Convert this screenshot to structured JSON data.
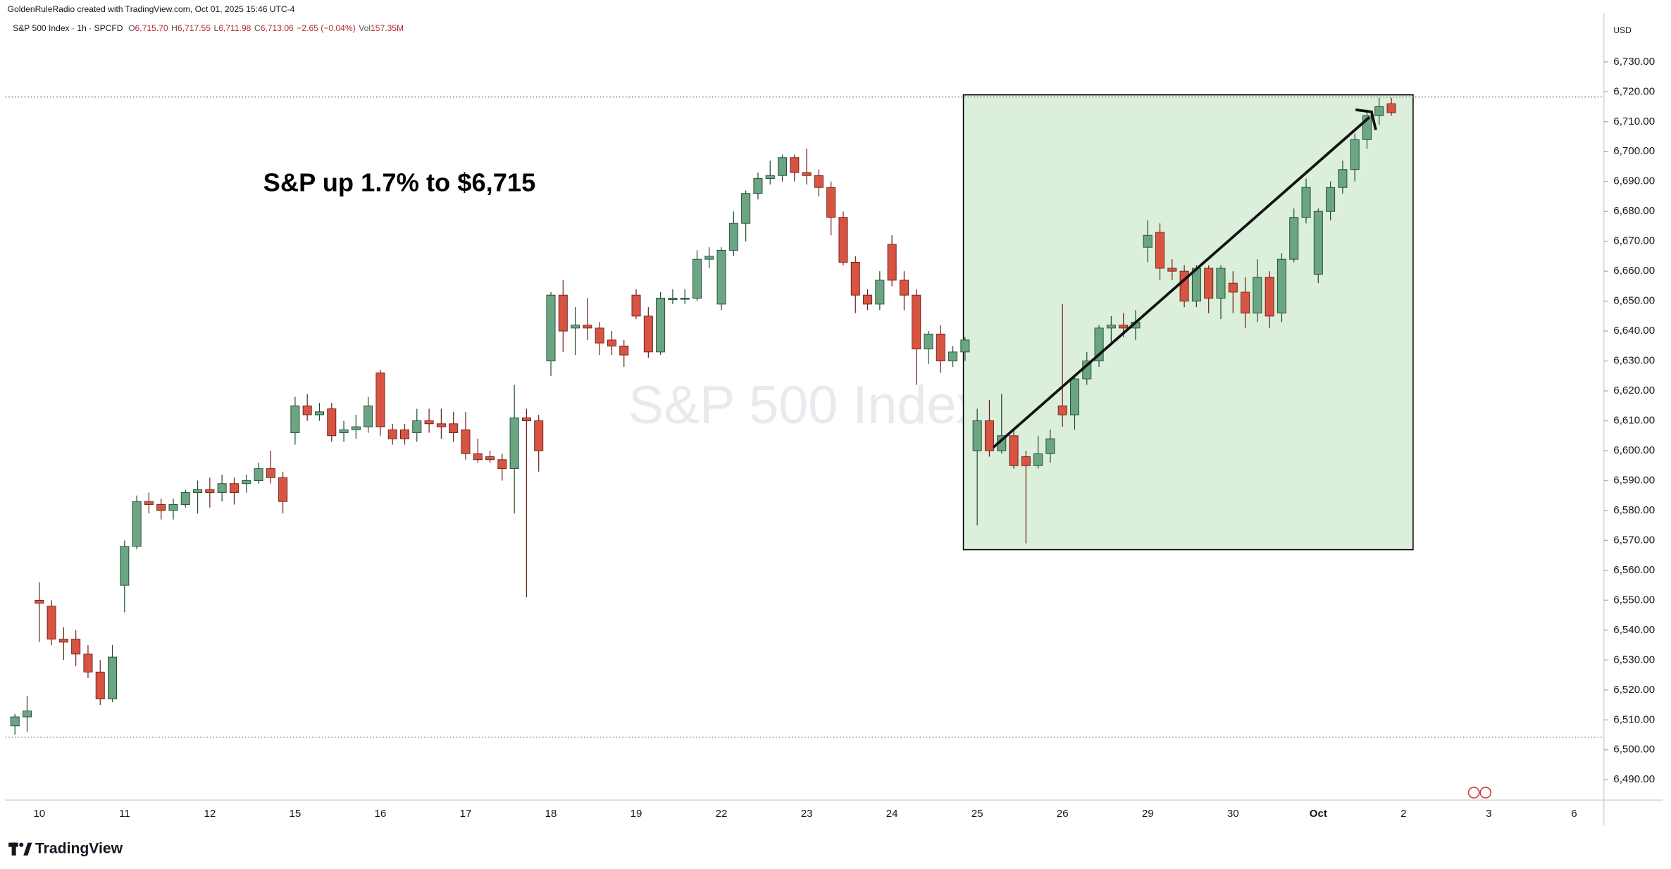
{
  "chart_data": {
    "type": "candlestick",
    "credit": "GoldenRuleRadio created with TradingView.com, Oct 01, 2025 15:46 UTC-4",
    "symbol": "S&P 500 Index · 1h · SPCFD",
    "quote": [
      {
        "label": "O",
        "value": "6,715.70"
      },
      {
        "label": "H",
        "value": "6,717.55"
      },
      {
        "label": "L",
        "value": "6,711.98"
      },
      {
        "label": "C",
        "value": "6,713.06"
      }
    ],
    "change": "−2.65 (−0.04%)",
    "volume_label": "Vol",
    "volume": "157.35M",
    "currency": "USD",
    "watermark": "S&P 500 Index",
    "annotation": "S&P up 1.7% to $6,715",
    "brand": "TradingView",
    "up_color": "#6ba583",
    "down_color": "#d75442",
    "up_border": "#1f4a31",
    "down_border": "#6b1f17",
    "categories": [
      null,
      null,
      "10",
      null,
      null,
      null,
      null,
      null,
      null,
      "11",
      null,
      null,
      null,
      null,
      null,
      null,
      "12",
      null,
      null,
      null,
      null,
      null,
      null,
      "15",
      null,
      null,
      null,
      null,
      null,
      null,
      "16",
      null,
      null,
      null,
      null,
      null,
      null,
      "17",
      null,
      null,
      null,
      null,
      null,
      null,
      "18",
      null,
      null,
      null,
      null,
      null,
      null,
      "19",
      null,
      null,
      null,
      null,
      null,
      null,
      "22",
      null,
      null,
      null,
      null,
      null,
      null,
      "23",
      null,
      null,
      null,
      null,
      null,
      null,
      "24",
      null,
      null,
      null,
      null,
      null,
      null,
      "25",
      null,
      null,
      null,
      null,
      null,
      null,
      "26",
      null,
      null,
      null,
      null,
      null,
      null,
      "29",
      null,
      null,
      null,
      null,
      null,
      null,
      "30",
      null,
      null,
      null,
      null,
      null,
      null,
      "Oct",
      null,
      null,
      null,
      null,
      null,
      null,
      "2",
      null,
      null,
      null,
      null,
      null,
      null,
      "3",
      null,
      null,
      null,
      null,
      null,
      null,
      "6",
      null
    ],
    "open": [
      6508,
      6511,
      6550,
      6548,
      6537,
      6537,
      6532,
      6526,
      6517,
      6555,
      6568,
      6583,
      6582,
      6580,
      6582,
      6586,
      6587,
      6586,
      6589,
      6589,
      6590,
      6594,
      6591,
      6606,
      6615,
      6612,
      6614,
      6606,
      6607,
      6608,
      6626,
      6607,
      6607,
      6606,
      6610,
      6609,
      6609,
      6607,
      6599,
      6598,
      6597,
      6594,
      6611,
      6610,
      6630,
      6652,
      6641,
      6642,
      6641,
      6637,
      6635,
      6652,
      6645,
      6633,
      6650.5,
      6650.6,
      6651,
      6664,
      6649,
      6667,
      6676,
      6686,
      6691,
      6692,
      6698,
      6693,
      6692,
      6688,
      6678,
      6663,
      6652,
      6649,
      6669,
      6657,
      6652,
      6634,
      6639,
      6630,
      6633,
      6600,
      6610,
      6600,
      6605,
      6598,
      6595,
      6599,
      6615,
      6612,
      6624,
      6630,
      6641,
      6642,
      6641,
      6668,
      6673,
      6661,
      6660,
      6650,
      6661,
      6651,
      6656,
      6653,
      6646,
      6658,
      6646,
      6664,
      6678,
      6659,
      6680,
      6688,
      6694,
      6704,
      6712,
      6716,
      null,
      null,
      null,
      null,
      null,
      null,
      null,
      null,
      null,
      null,
      null,
      null,
      null,
      null,
      null,
      null
    ],
    "high": [
      6512,
      6518,
      6556,
      6550,
      6541,
      6540,
      6535,
      6530,
      6535,
      6570,
      6585,
      6586,
      6584,
      6584,
      6587,
      6590,
      6591,
      6592,
      6591,
      6592,
      6596,
      6600,
      6593,
      6618,
      6619,
      6616,
      6616,
      6610,
      6612,
      6618,
      6627,
      6609,
      6609,
      6614,
      6614,
      6614,
      6613,
      6613,
      6604,
      6600,
      6599,
      6622,
      6614,
      6612,
      6653,
      6657,
      6648,
      6651,
      6643,
      6640,
      6637,
      6654,
      6648,
      6653,
      6654,
      6654,
      6667,
      6668,
      6668,
      6680,
      6687,
      6693,
      6697,
      6699,
      6699,
      6701,
      6694,
      6690,
      6680,
      6665,
      6654,
      6660,
      6672,
      6660,
      6654,
      6640,
      6642,
      6635,
      6638,
      6614,
      6617,
      6619,
      6607,
      6600,
      6605,
      6607,
      6649,
      6625,
      6633,
      6642,
      6645,
      6646,
      6647,
      6677,
      6676,
      6664,
      6662,
      6662,
      6662,
      6662,
      6660,
      6658,
      6664,
      6660,
      6666,
      6681,
      6691,
      6681,
      6690,
      6697,
      6706,
      6714,
      6718,
      6718,
      null,
      null,
      null,
      null,
      null,
      null,
      null,
      null,
      null,
      null,
      null,
      null,
      null,
      null,
      null,
      null
    ],
    "low": [
      6505,
      6506,
      6536,
      6535,
      6530,
      6528,
      6524,
      6515,
      6516,
      6546,
      6567,
      6579,
      6577,
      6577,
      6581,
      6579,
      6581,
      6583,
      6582,
      6586,
      6589,
      6589,
      6579,
      6602,
      6610,
      6610,
      6603,
      6603,
      6604,
      6606,
      6605,
      6602,
      6602,
      6603,
      6606,
      6604,
      6603,
      6597,
      6596,
      6596,
      6590,
      6579,
      6551,
      6593,
      6625,
      6633,
      6632,
      6637,
      6632,
      6632,
      6628,
      6644,
      6631,
      6632,
      6649,
      6649,
      6650,
      6661,
      6647,
      6665,
      6670,
      6684,
      6689,
      6690,
      6690,
      6689,
      6685,
      6672,
      6662,
      6646,
      6647,
      6647,
      6655,
      6647,
      6622,
      6629,
      6626,
      6628,
      6630,
      6575,
      6598,
      6599,
      6594,
      6569,
      6594,
      6596,
      6608,
      6607,
      6622,
      6628,
      6636,
      6638,
      6637,
      6663,
      6657,
      6657,
      6648,
      6648,
      6646,
      6644,
      6646,
      6641,
      6643,
      6641,
      6643,
      6663,
      6676,
      6656,
      6677,
      6686,
      6690,
      6701,
      6709,
      6712,
      null,
      null,
      null,
      null,
      null,
      null,
      null,
      null,
      null,
      null,
      null,
      null,
      null,
      null,
      null,
      null
    ],
    "close": [
      6511,
      6513,
      6549,
      6537,
      6536,
      6532,
      6526,
      6517,
      6531,
      6568,
      6583,
      6582,
      6580,
      6582,
      6586,
      6587,
      6586,
      6589,
      6586,
      6590,
      6594,
      6591,
      6583,
      6615,
      6612,
      6613,
      6605,
      6607,
      6608,
      6615,
      6608,
      6604,
      6604,
      6610,
      6609,
      6608,
      6606,
      6599,
      6597,
      6597,
      6594,
      6611,
      6610,
      6600,
      6652,
      6640,
      6642,
      6641,
      6636,
      6635,
      6632,
      6645,
      6633,
      6651,
      6651,
      6651,
      6664,
      6665,
      6667,
      6676,
      6686,
      6691,
      6692,
      6698,
      6693,
      6692,
      6688,
      6678,
      6663,
      6652,
      6649,
      6657,
      6657,
      6652,
      6634,
      6639,
      6630,
      6633,
      6637,
      6610,
      6600,
      6605,
      6595,
      6595,
      6599,
      6604,
      6612,
      6624,
      6630,
      6641,
      6642,
      6641,
      6643,
      6672,
      6661,
      6660,
      6650,
      6661,
      6651,
      6661,
      6653,
      6646,
      6658,
      6645,
      6664,
      6678,
      6688,
      6680,
      6688,
      6694,
      6704,
      6712,
      6715,
      6713,
      null,
      null,
      null,
      null,
      null,
      null,
      null,
      null,
      null,
      null,
      null,
      null,
      null,
      null,
      null,
      null
    ],
    "ylim": [
      6483.2,
      6746.4
    ],
    "yticks": [
      {
        "value": 6490,
        "label": "6,490.00"
      },
      {
        "value": 6500,
        "label": "6,500.00"
      },
      {
        "value": 6510,
        "label": "6,510.00"
      },
      {
        "value": 6520,
        "label": "6,520.00"
      },
      {
        "value": 6530,
        "label": "6,530.00"
      },
      {
        "value": 6540,
        "label": "6,540.00"
      },
      {
        "value": 6550,
        "label": "6,550.00"
      },
      {
        "value": 6560,
        "label": "6,560.00"
      },
      {
        "value": 6570,
        "label": "6,570.00"
      },
      {
        "value": 6580,
        "label": "6,580.00"
      },
      {
        "value": 6590,
        "label": "6,590.00"
      },
      {
        "value": 6600,
        "label": "6,600.00"
      },
      {
        "value": 6610,
        "label": "6,610.00"
      },
      {
        "value": 6620,
        "label": "6,620.00"
      },
      {
        "value": 6630,
        "label": "6,630.00"
      },
      {
        "value": 6640,
        "label": "6,640.00"
      },
      {
        "value": 6650,
        "label": "6,650.00"
      },
      {
        "value": 6660,
        "label": "6,660.00"
      },
      {
        "value": 6670,
        "label": "6,670.00"
      },
      {
        "value": 6680,
        "label": "6,680.00"
      },
      {
        "value": 6690,
        "label": "6,690.00"
      },
      {
        "value": 6700,
        "label": "6,700.00"
      },
      {
        "value": 6710,
        "label": "6,710.00"
      },
      {
        "value": 6720,
        "label": "6,720.00"
      },
      {
        "value": 6730,
        "label": "6,730.00"
      }
    ],
    "grid": false
  }
}
